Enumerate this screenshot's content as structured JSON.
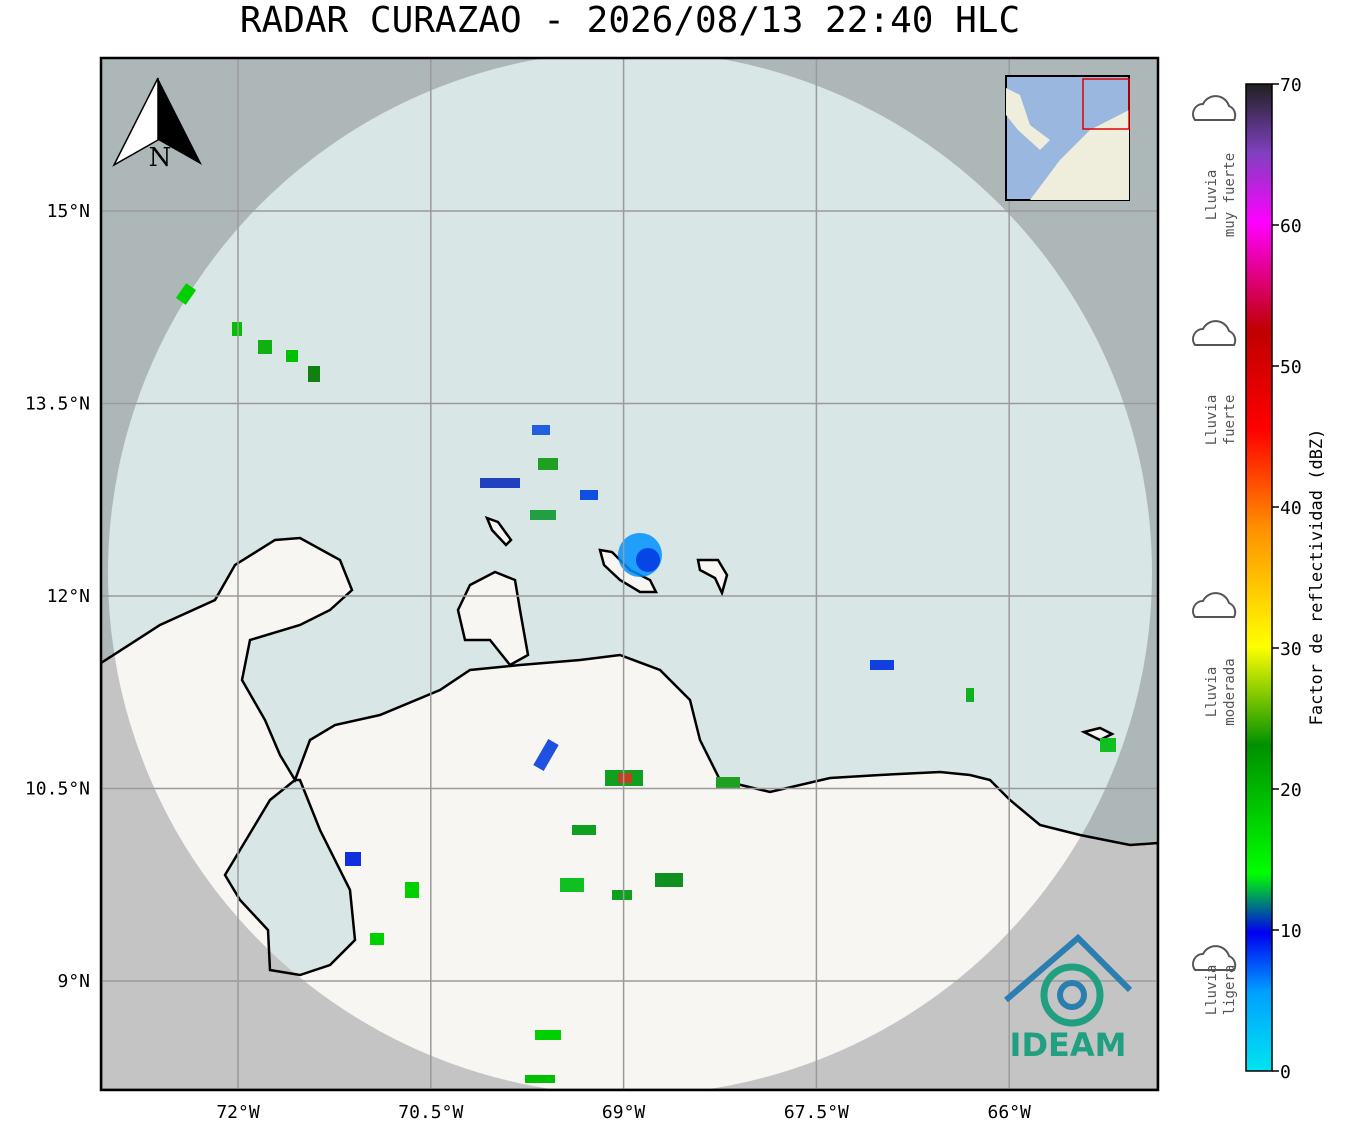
{
  "title": "RADAR CURAZAO - 2026/08/13 22:40 HLC",
  "map": {
    "lat_labels": [
      "15°N",
      "13.5°N",
      "12°N",
      "10.5°N",
      "9°N"
    ],
    "lon_labels": [
      "72°W",
      "70.5°W",
      "69°W",
      "67.5°W",
      "66°W"
    ],
    "north_label": "N"
  },
  "colorbar": {
    "label": "Factor de reflectividad (dBZ)",
    "lim": [
      0,
      70
    ],
    "ticks": [
      0,
      10,
      20,
      30,
      40,
      50,
      60,
      70
    ]
  },
  "legend": [
    {
      "line1": "Lluvia",
      "line2": "muy fuerte"
    },
    {
      "line1": "Lluvia",
      "line2": "fuerte"
    },
    {
      "line1": "Lluvia",
      "line2": "moderada"
    },
    {
      "line1": "Lluvia",
      "line2": "ligera"
    }
  ],
  "logo": "IDEAM"
}
